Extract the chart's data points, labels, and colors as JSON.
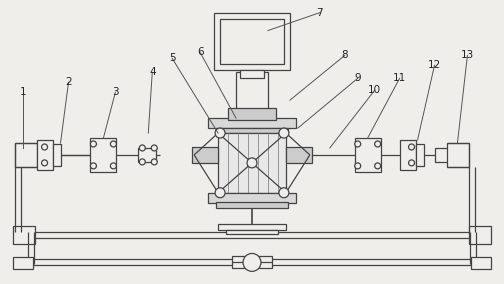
{
  "bg_color": "#f0eeeb",
  "line_color": "#444444",
  "lw": 0.9,
  "fig_width": 5.04,
  "fig_height": 2.84,
  "dpi": 100
}
